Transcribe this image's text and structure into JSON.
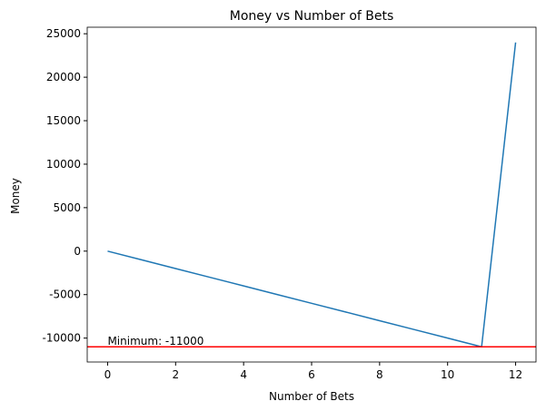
{
  "chart_data": {
    "type": "line",
    "title": "Money vs Number of Bets",
    "xlabel": "Number of Bets",
    "ylabel": "Money",
    "x": [
      0,
      1,
      2,
      3,
      4,
      5,
      6,
      7,
      8,
      9,
      10,
      11,
      12
    ],
    "series": [
      {
        "color": "#1f77b4",
        "values": [
          0,
          -1000,
          -2000,
          -3000,
          -4000,
          -5000,
          -6000,
          -7000,
          -8000,
          -9000,
          -10000,
          -11000,
          24000
        ]
      }
    ],
    "xlim": [
      -0.6,
      12.6
    ],
    "ylim": [
      -12750,
      25750
    ],
    "xticks": [
      0,
      2,
      4,
      6,
      8,
      10,
      12
    ],
    "yticks": [
      -10000,
      -5000,
      0,
      5000,
      10000,
      15000,
      20000,
      25000
    ],
    "hline": {
      "value": -11000,
      "color": "#ff0000"
    },
    "annotation": {
      "text": "Minimum: -11000",
      "x": 0,
      "y": -11000
    }
  }
}
